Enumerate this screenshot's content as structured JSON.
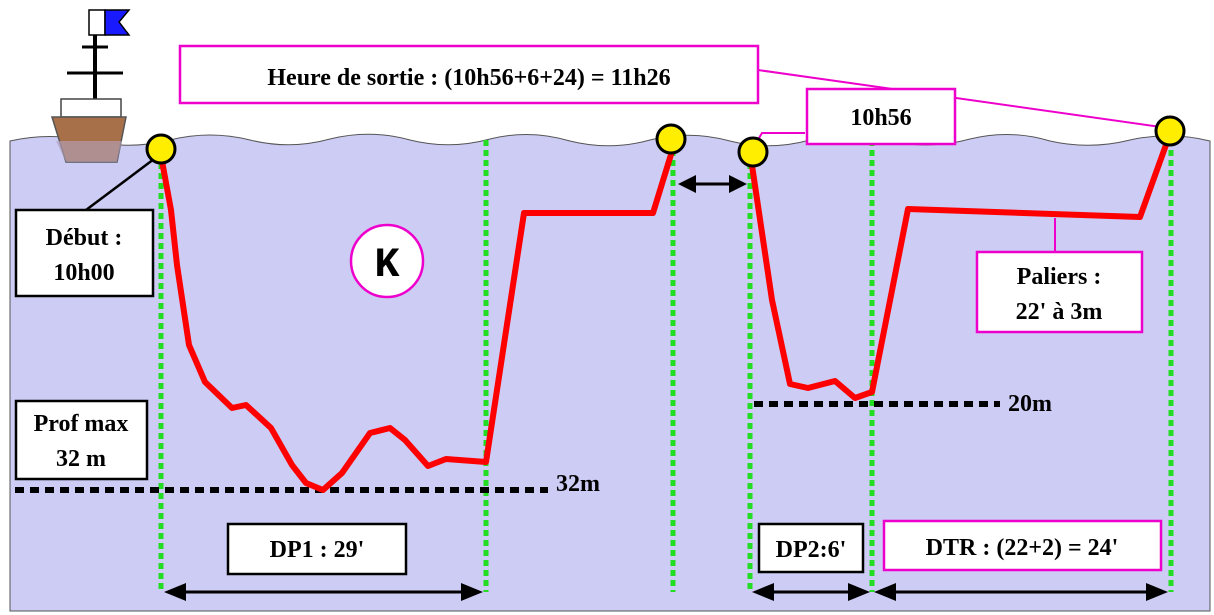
{
  "labels": {
    "exit_time": "Heure de sortie : (10h56+6+24) = 11h26",
    "surface_time": "10h56",
    "start_line1": "Début :",
    "start_line2": "10h00",
    "max_depth_line1": "Prof max",
    "max_depth_line2": "32 m",
    "group_letter": "K",
    "stops_line1": "Paliers :",
    "stops_line2": "22' à 3m",
    "depth1": "32m",
    "depth2": "20m",
    "dp1": "DP1 : 29'",
    "dp2": "DP2:6'",
    "dtr": "DTR : (22+2) = 24'"
  },
  "colors": {
    "water": "#ccccf5",
    "profile": "#ff0000",
    "marker_fill": "#ffee00",
    "guide_line": "#22dd22",
    "highlight_border": "#ee00cc",
    "boat_hull": "#a87048",
    "flag_blue": "#1a1aff"
  },
  "icons": [
    "boat-icon",
    "dive-flag-icon"
  ]
}
